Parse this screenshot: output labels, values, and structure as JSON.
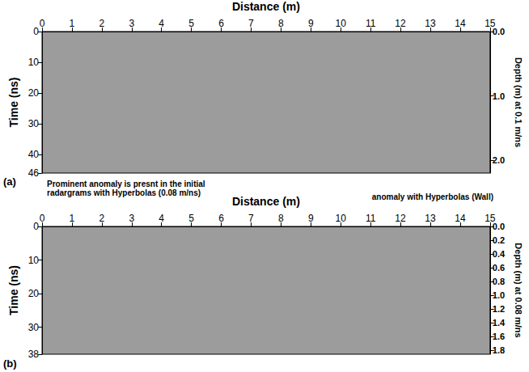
{
  "chart_data": [
    {
      "type": "radargram",
      "panel_label": "(a)",
      "xlabel": "Distance (m)",
      "ylabel": "Time (ns)",
      "y2label": "Depth (m) at 0.1 m/ns",
      "xlim": [
        0,
        15
      ],
      "xticks": [
        0,
        1,
        2,
        3,
        4,
        5,
        6,
        7,
        8,
        9,
        10,
        11,
        12,
        13,
        14,
        15
      ],
      "ylim": [
        0,
        46
      ],
      "yticks": [
        0,
        10,
        20,
        30,
        40
      ],
      "y2lim": [
        0,
        2.2
      ],
      "y2ticks": [
        {
          "value": 0,
          "label": "0.0"
        },
        {
          "value": 1,
          "label": "1.0"
        },
        {
          "value": 2,
          "label": "2.0"
        }
      ],
      "grid": false,
      "annotations": []
    },
    {
      "type": "radargram",
      "panel_label": "(b)",
      "xlabel": "Distance (m)",
      "ylabel": "Time (ns)",
      "y2label": "Depth (m) at 0.08 m/ns",
      "xlim": [
        0,
        15
      ],
      "xticks": [
        0,
        1,
        2,
        3,
        4,
        5,
        6,
        7,
        8,
        9,
        10,
        11,
        12,
        13,
        14,
        15
      ],
      "ylim": [
        0,
        38
      ],
      "yticks": [
        0,
        10,
        20,
        30
      ],
      "y2lim": [
        0,
        1.86
      ],
      "y2ticks": [
        {
          "value": 0,
          "label": "0.0"
        },
        {
          "value": 0.2,
          "label": "0.2"
        },
        {
          "value": 0.4,
          "label": "0.4"
        },
        {
          "value": 0.6,
          "label": "0.6"
        },
        {
          "value": 0.8,
          "label": "0.8"
        },
        {
          "value": 1,
          "label": "1.0"
        },
        {
          "value": 1.2,
          "label": "1.2"
        },
        {
          "value": 1.4,
          "label": "1.4"
        },
        {
          "value": 1.6,
          "label": "1.6"
        },
        {
          "value": 1.8,
          "label": "1.8"
        }
      ],
      "grid": false,
      "annotations": [
        "Prominent anomaly is presnt in the initial radargrams with Hyperbolas (0.08 m/ns)",
        "anomaly with Hyperbolas (Wall)"
      ]
    }
  ]
}
